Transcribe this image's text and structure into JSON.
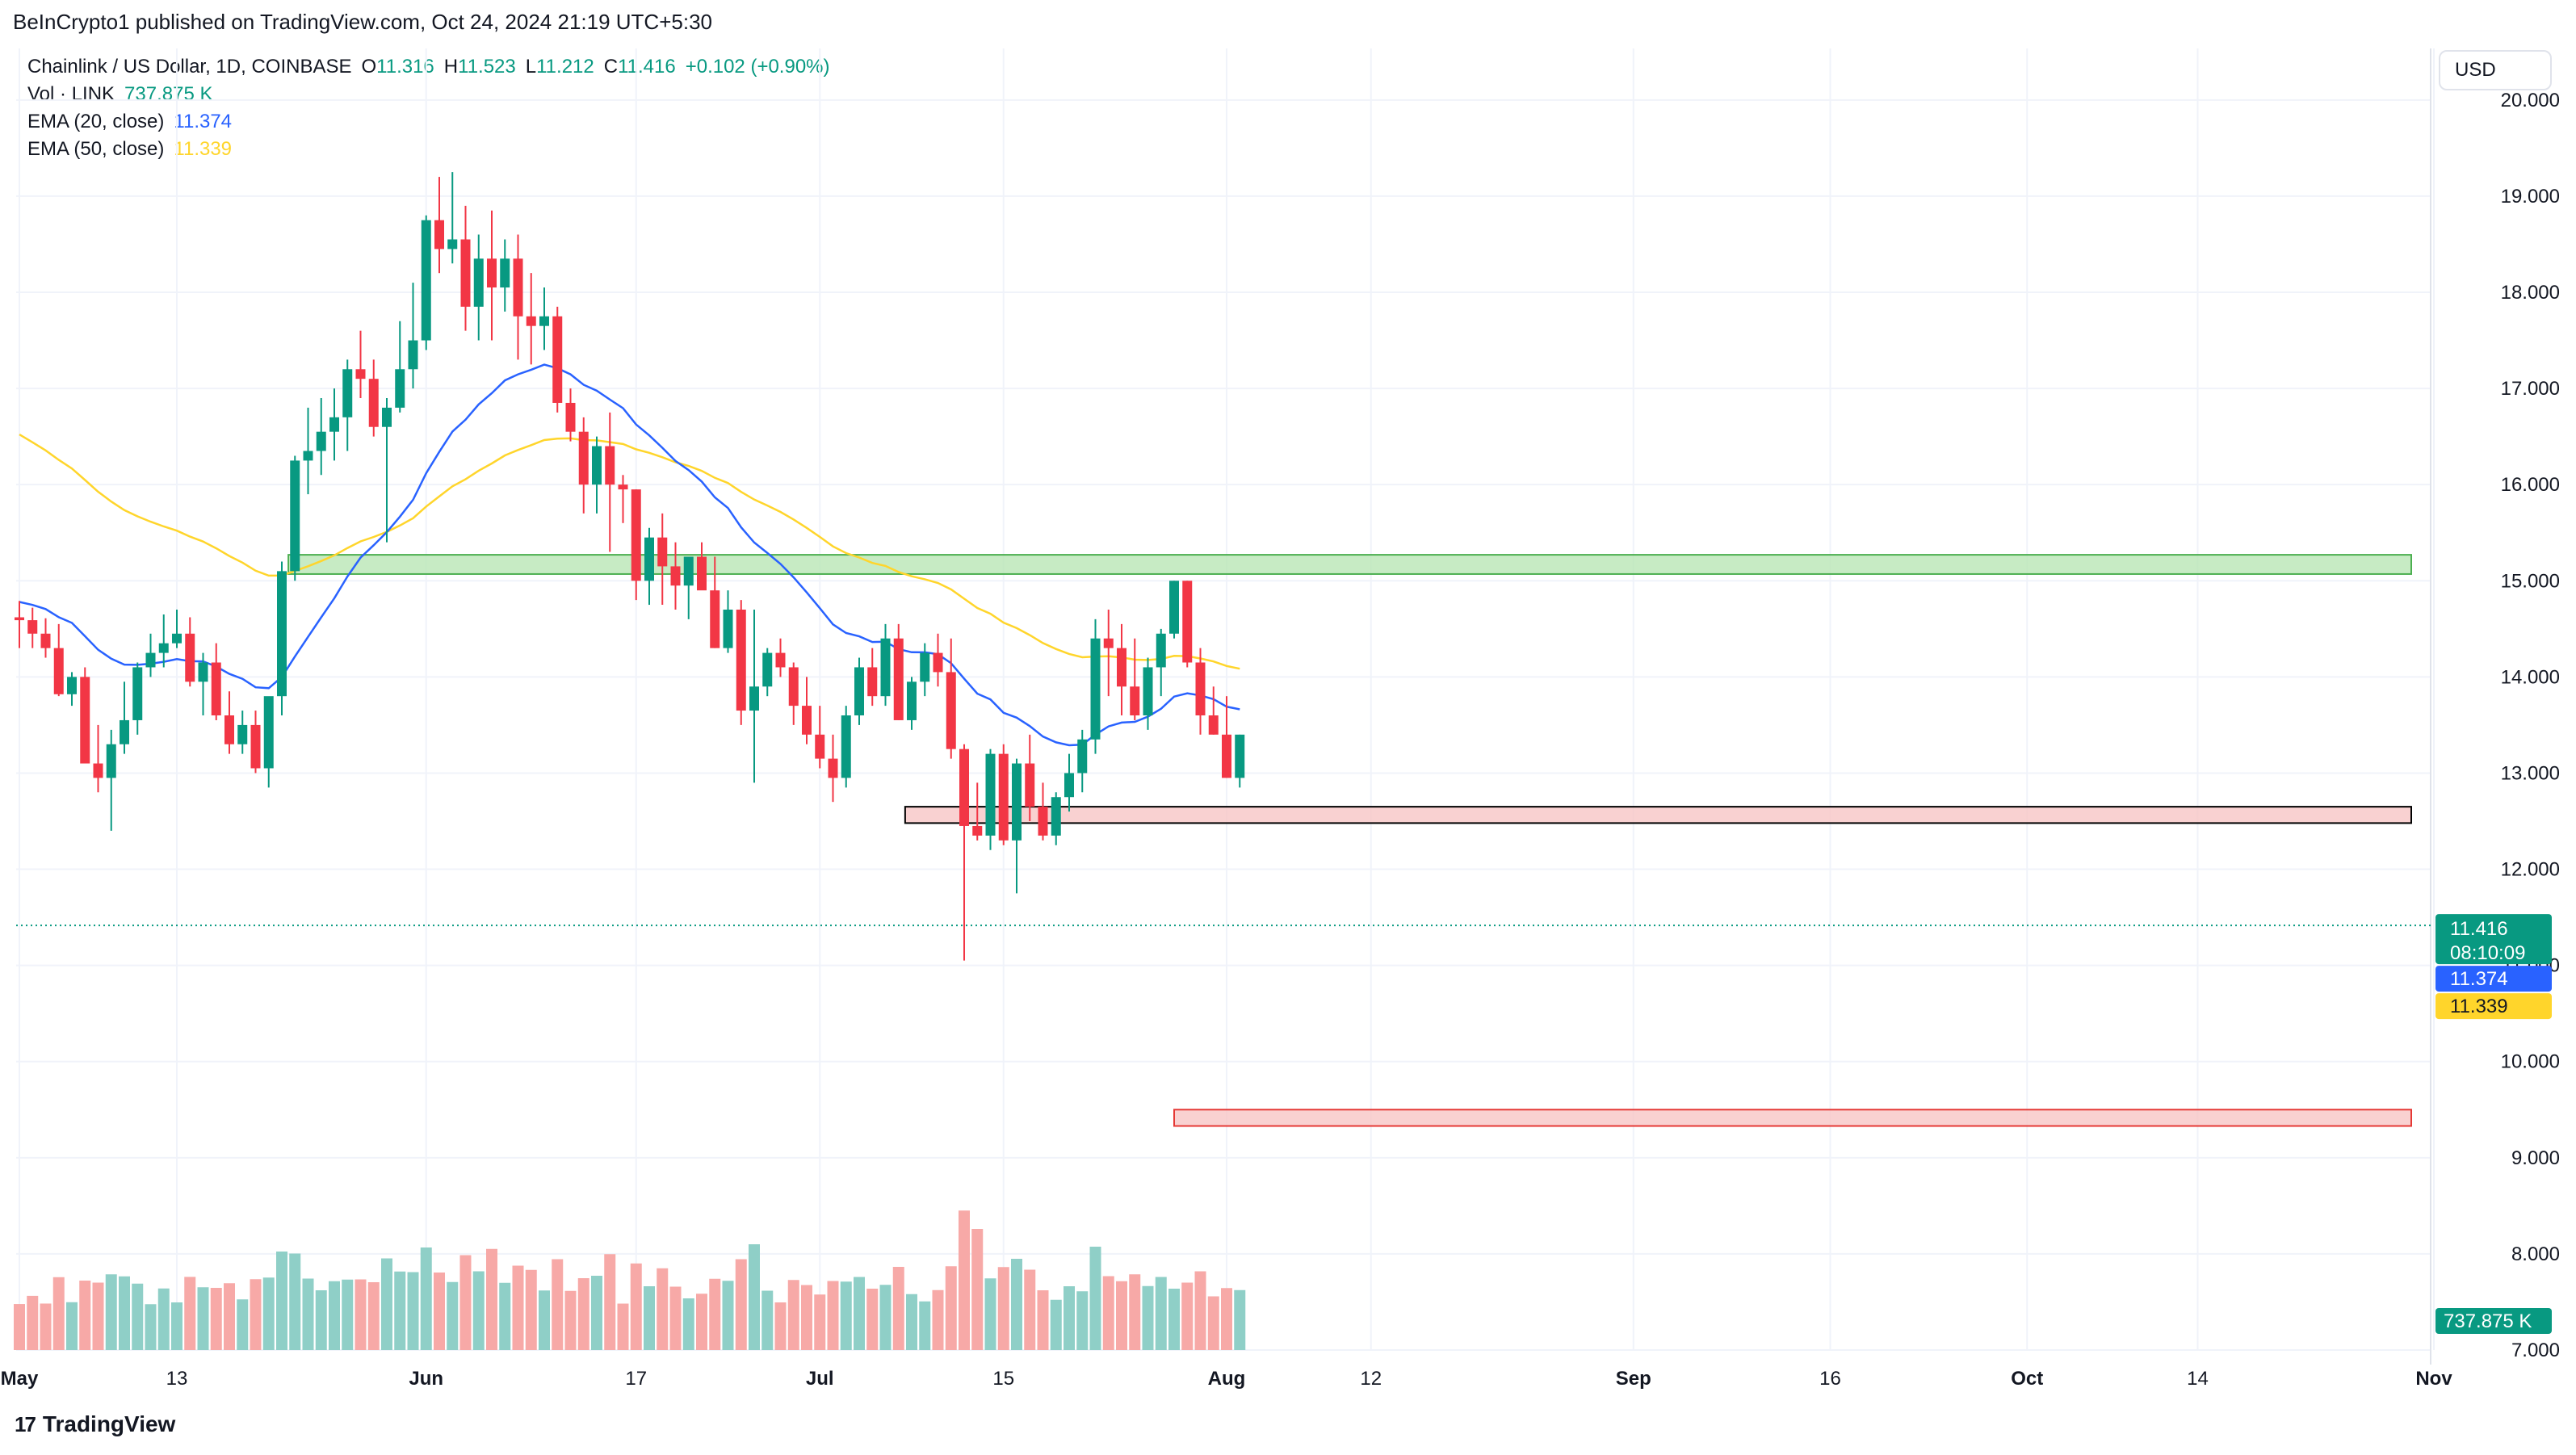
{
  "published": "BeInCrypto1 published on TradingView.com, Oct 24, 2024 21:19 UTC+5:30",
  "legend": {
    "symbol": "Chainlink / US Dollar, 1D, COINBASE",
    "o_label": "O",
    "o_value": "11.316",
    "h_label": "H",
    "h_value": "11.523",
    "l_label": "L",
    "l_value": "11.212",
    "c_label": "C",
    "c_value": "11.416",
    "change": "+0.102 (+0.90%)",
    "vol_label": "Vol · LINK",
    "vol_value": "737.875 K",
    "ema20_label": "EMA (20, close)",
    "ema20_value": "11.374",
    "ema50_label": "EMA (50, close)",
    "ema50_value": "11.339"
  },
  "currency_button": "USD",
  "footer": {
    "brand": "TradingView",
    "mark": "17"
  },
  "colors": {
    "up": "#089981",
    "down": "#f23645",
    "vol_up": "#8fcfc7",
    "vol_down": "#f7a9a7",
    "ema20": "#2962ff",
    "ema50": "#ffd52b",
    "green_zone": "#b9e6b5",
    "red_zone": "#f8c6c6"
  },
  "chart_data": {
    "type": "candlestick",
    "title": "Chainlink / US Dollar, 1D, COINBASE",
    "y_ticks": [
      "20.000",
      "19.000",
      "18.000",
      "17.000",
      "16.000",
      "15.000",
      "14.000",
      "13.000",
      "12.000",
      "11.000",
      "10.000",
      "9.000",
      "8.000",
      "7.000"
    ],
    "ylim": [
      7.0,
      20.2
    ],
    "x_ticks": [
      {
        "label": "May",
        "day": 0,
        "bold": true
      },
      {
        "label": "13",
        "day": 12,
        "bold": false
      },
      {
        "label": "Jun",
        "day": 31,
        "bold": true
      },
      {
        "label": "17",
        "day": 47,
        "bold": false
      },
      {
        "label": "Jul",
        "day": 61,
        "bold": true
      },
      {
        "label": "15",
        "day": 75,
        "bold": false
      },
      {
        "label": "Aug",
        "day": 92,
        "bold": true
      },
      {
        "label": "12",
        "day": 103,
        "bold": false
      },
      {
        "label": "Sep",
        "day": 123,
        "bold": true
      },
      {
        "label": "16",
        "day": 138,
        "bold": false
      },
      {
        "label": "Oct",
        "day": 153,
        "bold": true
      },
      {
        "label": "14",
        "day": 166,
        "bold": false
      },
      {
        "label": "Nov",
        "day": 184,
        "bold": true
      }
    ],
    "zones": [
      {
        "name": "resistance-zone-green",
        "y_low": 15.07,
        "y_high": 15.27,
        "x_start_day": 20.5,
        "kind": "green"
      },
      {
        "name": "resistance-zone-red",
        "y_low": 12.48,
        "y_high": 12.65,
        "x_start_day": 67.5,
        "kind": "red"
      },
      {
        "name": "support-zone-red",
        "y_low": 9.33,
        "y_high": 9.5,
        "x_start_day": 88,
        "kind": "red"
      }
    ],
    "current_price": "11.416",
    "countdown": "08:10:09",
    "ema20_last": "11.374",
    "ema50_last": "11.339",
    "candles": [
      [
        14.62,
        14.79,
        14.3,
        14.59
      ],
      [
        14.59,
        14.72,
        14.3,
        14.45
      ],
      [
        14.45,
        14.61,
        14.2,
        14.3
      ],
      [
        14.3,
        14.55,
        13.8,
        13.82
      ],
      [
        13.82,
        14.05,
        13.7,
        14.0
      ],
      [
        14.0,
        14.1,
        13.1,
        13.1
      ],
      [
        13.1,
        13.5,
        12.8,
        12.95
      ],
      [
        12.95,
        13.45,
        12.4,
        13.3
      ],
      [
        13.3,
        13.95,
        13.2,
        13.55
      ],
      [
        13.55,
        14.15,
        13.4,
        14.1
      ],
      [
        14.1,
        14.45,
        14.0,
        14.25
      ],
      [
        14.25,
        14.65,
        14.1,
        14.35
      ],
      [
        14.35,
        14.7,
        14.3,
        14.45
      ],
      [
        14.45,
        14.62,
        13.9,
        13.95
      ],
      [
        13.95,
        14.25,
        13.6,
        14.15
      ],
      [
        14.15,
        14.35,
        13.55,
        13.6
      ],
      [
        13.6,
        13.85,
        13.2,
        13.3
      ],
      [
        13.3,
        13.65,
        13.2,
        13.5
      ],
      [
        13.5,
        13.65,
        13.0,
        13.05
      ],
      [
        13.05,
        13.7,
        12.85,
        13.8
      ],
      [
        13.8,
        15.2,
        13.6,
        15.1
      ],
      [
        15.1,
        16.3,
        15.0,
        16.25
      ],
      [
        16.25,
        16.8,
        15.9,
        16.35
      ],
      [
        16.35,
        16.9,
        16.1,
        16.55
      ],
      [
        16.55,
        17.0,
        16.25,
        16.7
      ],
      [
        16.7,
        17.3,
        16.35,
        17.2
      ],
      [
        17.2,
        17.6,
        16.9,
        17.1
      ],
      [
        17.1,
        17.3,
        16.5,
        16.6
      ],
      [
        16.6,
        16.9,
        15.4,
        16.8
      ],
      [
        16.8,
        17.7,
        16.75,
        17.2
      ],
      [
        17.2,
        18.1,
        17.0,
        17.5
      ],
      [
        17.5,
        18.8,
        17.4,
        18.75
      ],
      [
        18.75,
        19.2,
        18.2,
        18.45
      ],
      [
        18.45,
        19.25,
        18.3,
        18.55
      ],
      [
        18.55,
        18.9,
        17.6,
        17.85
      ],
      [
        17.85,
        18.6,
        17.5,
        18.35
      ],
      [
        18.35,
        18.85,
        17.5,
        18.05
      ],
      [
        18.05,
        18.55,
        17.8,
        18.35
      ],
      [
        18.35,
        18.6,
        17.3,
        17.75
      ],
      [
        17.75,
        18.2,
        17.25,
        17.65
      ],
      [
        17.65,
        18.05,
        17.4,
        17.75
      ],
      [
        17.75,
        17.85,
        16.75,
        16.85
      ],
      [
        16.85,
        17.0,
        16.45,
        16.55
      ],
      [
        16.55,
        16.7,
        15.7,
        16.0
      ],
      [
        16.0,
        16.5,
        15.7,
        16.4
      ],
      [
        16.4,
        16.75,
        15.3,
        16.0
      ],
      [
        16.0,
        16.1,
        15.6,
        15.95
      ],
      [
        15.95,
        15.95,
        14.8,
        15.0
      ],
      [
        15.0,
        15.55,
        14.75,
        15.45
      ],
      [
        15.45,
        15.7,
        14.75,
        15.15
      ],
      [
        15.15,
        15.4,
        14.7,
        14.95
      ],
      [
        14.95,
        15.2,
        14.6,
        15.25
      ],
      [
        15.25,
        15.4,
        14.95,
        14.9
      ],
      [
        14.9,
        15.25,
        14.3,
        14.3
      ],
      [
        14.3,
        14.9,
        14.25,
        14.7
      ],
      [
        14.7,
        14.8,
        13.5,
        13.65
      ],
      [
        13.65,
        14.7,
        12.9,
        13.9
      ],
      [
        13.9,
        14.3,
        13.8,
        14.25
      ],
      [
        14.25,
        14.4,
        14.0,
        14.1
      ],
      [
        14.1,
        14.15,
        13.5,
        13.7
      ],
      [
        13.7,
        14.0,
        13.3,
        13.4
      ],
      [
        13.4,
        13.7,
        13.05,
        13.15
      ],
      [
        13.15,
        13.4,
        12.7,
        12.95
      ],
      [
        12.95,
        13.7,
        12.85,
        13.6
      ],
      [
        13.6,
        14.2,
        13.5,
        14.1
      ],
      [
        14.1,
        14.3,
        13.7,
        13.8
      ],
      [
        13.8,
        14.55,
        13.7,
        14.4
      ],
      [
        14.4,
        14.55,
        13.55,
        13.55
      ],
      [
        13.55,
        14.0,
        13.45,
        13.95
      ],
      [
        13.95,
        14.35,
        13.8,
        14.25
      ],
      [
        14.25,
        14.45,
        13.9,
        14.05
      ],
      [
        14.05,
        14.4,
        13.15,
        13.25
      ],
      [
        13.25,
        13.3,
        11.05,
        12.45
      ],
      [
        12.45,
        12.9,
        12.3,
        12.35
      ],
      [
        12.35,
        13.25,
        12.2,
        13.2
      ],
      [
        13.2,
        13.3,
        12.25,
        12.3
      ],
      [
        12.3,
        13.15,
        11.75,
        13.1
      ],
      [
        13.1,
        13.4,
        12.5,
        12.65
      ],
      [
        12.65,
        12.9,
        12.3,
        12.35
      ],
      [
        12.35,
        12.8,
        12.25,
        12.75
      ],
      [
        12.75,
        13.2,
        12.6,
        13.0
      ],
      [
        13.0,
        13.45,
        12.8,
        13.35
      ],
      [
        13.35,
        14.6,
        13.2,
        14.4
      ],
      [
        14.4,
        14.7,
        13.8,
        14.3
      ],
      [
        14.3,
        14.55,
        13.6,
        13.9
      ],
      [
        13.9,
        14.4,
        13.55,
        13.6
      ],
      [
        13.6,
        14.2,
        13.45,
        14.1
      ],
      [
        14.1,
        14.5,
        13.8,
        14.45
      ],
      [
        14.45,
        15.0,
        14.4,
        15.0
      ],
      [
        15.0,
        15.0,
        14.1,
        14.15
      ],
      [
        14.15,
        14.3,
        13.4,
        13.6
      ],
      [
        13.6,
        13.9,
        13.4,
        13.4
      ],
      [
        13.4,
        13.8,
        12.95,
        12.95
      ],
      [
        12.95,
        13.4,
        12.85,
        13.4
      ]
    ]
  }
}
